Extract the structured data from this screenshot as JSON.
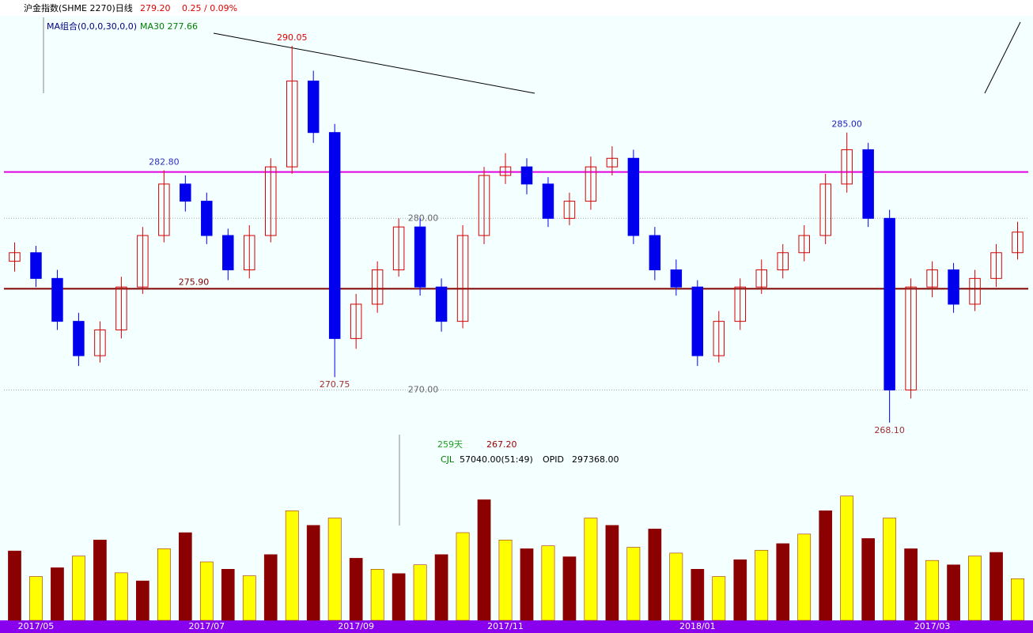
{
  "header": {
    "title": "沪金指数(SHME 2270)日线",
    "last": "279.20",
    "change": "0.25 / 0.09%",
    "ma_setting": "MA组合(0,0,0,30,0,0)",
    "ma_value": "MA30 277.66"
  },
  "chart_data": [
    {
      "type": "candlestick",
      "up_color": "#d40000",
      "down_color": "#0000ee",
      "categories": [
        null,
        "2017/05",
        null,
        null,
        null,
        null,
        null,
        null,
        null,
        "2017/07",
        null,
        null,
        null,
        null,
        null,
        null,
        "2017/09",
        null,
        null,
        null,
        null,
        null,
        null,
        "2017/11",
        null,
        null,
        null,
        null,
        null,
        null,
        null,
        null,
        "2018/01",
        null,
        null,
        null,
        null,
        null,
        null,
        null,
        null,
        null,
        null,
        "2017/03",
        null,
        null,
        null,
        null
      ],
      "open": [
        277.5,
        278,
        276.5,
        274,
        272,
        273.5,
        276,
        279,
        282,
        281,
        279,
        277,
        279,
        283,
        288,
        285,
        273,
        275,
        277,
        279.5,
        276,
        274,
        279,
        282.5,
        283,
        282,
        280,
        281,
        283,
        283.5,
        279,
        277,
        276,
        272,
        274,
        276,
        277,
        278,
        279,
        282,
        284,
        280,
        270,
        276,
        277,
        275,
        276.5,
        278
      ],
      "high": [
        278.6,
        278.4,
        277,
        274.5,
        274,
        276.6,
        279.5,
        282.8,
        282.5,
        281.5,
        279.4,
        279.6,
        283.5,
        290.05,
        288.6,
        285.5,
        275.6,
        277.5,
        280,
        280,
        276.5,
        279.6,
        283,
        283.8,
        283.5,
        282.4,
        281.5,
        283.6,
        284.2,
        284,
        279.5,
        277.6,
        276.4,
        274.6,
        276.5,
        277.6,
        278.5,
        279.6,
        282.6,
        285,
        284.4,
        280.5,
        276.5,
        277.5,
        277.4,
        277,
        278.5,
        279.8
      ],
      "low": [
        276.9,
        276,
        273.5,
        271.4,
        271.6,
        273,
        275.6,
        278.6,
        280.4,
        278.5,
        276.4,
        276.5,
        278.6,
        282.6,
        284.4,
        270.75,
        272.4,
        274.5,
        276.6,
        275.5,
        273.4,
        273.6,
        278.5,
        282,
        281.4,
        279.5,
        279.6,
        280.5,
        282.5,
        278.5,
        276.4,
        275.5,
        271.4,
        271.6,
        273.5,
        275.6,
        276.5,
        277.5,
        278.5,
        281.5,
        279.5,
        268.1,
        269.5,
        275.4,
        274.5,
        274.6,
        276,
        277.6
      ],
      "close": [
        278,
        276.5,
        274,
        272,
        273.5,
        276,
        279,
        282,
        281,
        279,
        277,
        279,
        283,
        288,
        285,
        273,
        275,
        277,
        279.5,
        276,
        274,
        279,
        282.5,
        283,
        282,
        280,
        281,
        283,
        283.5,
        279,
        277,
        276,
        272,
        274,
        276,
        277,
        278,
        279,
        282,
        284,
        280,
        270,
        276,
        277,
        275,
        276.5,
        278,
        279.2
      ],
      "ylim": [
        267.4,
        291.8
      ],
      "yticks": [
        {
          "value": 280,
          "label": "280.00"
        },
        {
          "value": 270,
          "label": "270.00"
        }
      ],
      "hlines": [
        {
          "value": 282.7,
          "color": "#e000e0"
        },
        {
          "value": 275.9,
          "label": "275.90",
          "color": "#800000"
        }
      ],
      "annotations": [
        {
          "value": 290.05,
          "label": "290.05",
          "color": "#e00000"
        },
        {
          "value": 282.8,
          "label": "282.80",
          "color": "#3030c0"
        },
        {
          "value": 285,
          "label": "285.00",
          "color": "#2020c0"
        },
        {
          "value": 270.75,
          "label": "270.75",
          "color": "#a03030"
        },
        {
          "value": 268.1,
          "label": "268.10",
          "color": "#a03030"
        }
      ],
      "panel_texts": [
        "259天",
        "267.20"
      ]
    },
    {
      "type": "bar",
      "title": "CJL",
      "subtitle": "57040.00(51:49)",
      "extra_label": "OPID",
      "extra_value": "297368.00",
      "color": "#8b0000",
      "alt_color": "#ffff00",
      "values": [
        95000,
        60000,
        72000,
        88000,
        110000,
        65000,
        54000,
        98000,
        120000,
        80000,
        70000,
        61000,
        90000,
        150000,
        130000,
        140000,
        85000,
        70000,
        64000,
        76000,
        90000,
        120000,
        165000,
        110000,
        98000,
        102000,
        87000,
        140000,
        130000,
        100000,
        125000,
        92000,
        70000,
        60000,
        83000,
        96000,
        105000,
        118000,
        150000,
        170000,
        112000,
        140000,
        98000,
        82000,
        76000,
        88000,
        93000,
        57040
      ],
      "ylim": [
        0,
        200000
      ]
    }
  ]
}
